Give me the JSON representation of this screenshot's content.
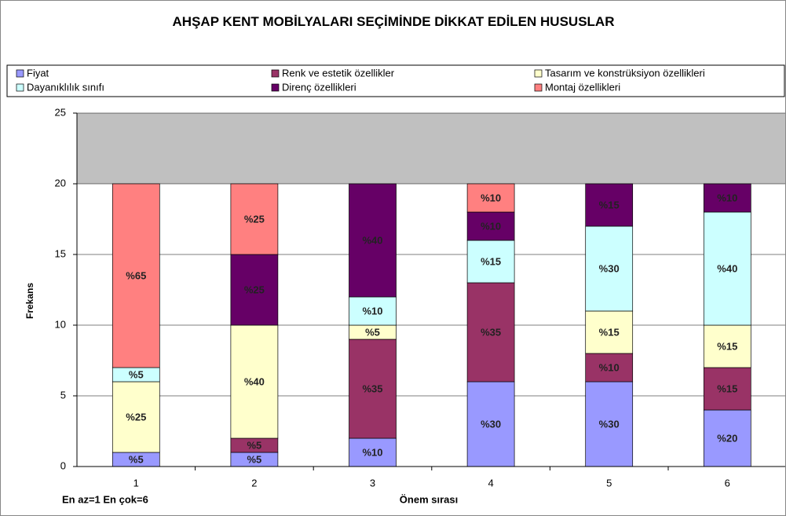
{
  "chart_data": {
    "type": "stacked_bar",
    "title": "AHŞAP KENT MOBİLYALARI SEÇİMİNDE DİKKAT EDİLEN HUSUSLAR",
    "x_label": "Önem sırası",
    "y_label": "Frekans",
    "annotation": "En az=1 En çok=6",
    "categories": [
      "1",
      "2",
      "3",
      "4",
      "5",
      "6"
    ],
    "series": [
      {
        "name": "Fiyat",
        "color": "#9999ff",
        "values": [
          1,
          1,
          2,
          6,
          6,
          4
        ],
        "value_labels": [
          "%5",
          "%5",
          "%10",
          "%30",
          "%30",
          "%20"
        ]
      },
      {
        "name": "Renk ve estetik özellikler",
        "color": "#993366",
        "values": [
          0,
          1,
          7,
          7,
          2,
          3
        ],
        "value_labels": [
          null,
          "%5",
          "%35",
          "%35",
          "%10",
          "%15"
        ]
      },
      {
        "name": "Tasarım ve konstrüksiyon özellikleri",
        "color": "#ffffcc",
        "values": [
          5,
          8,
          1,
          0,
          3,
          3
        ],
        "value_labels": [
          "%25",
          "%40",
          "%5",
          null,
          "%15",
          "%15"
        ]
      },
      {
        "name": "Dayanıklılık sınıfı",
        "color": "#ccffff",
        "values": [
          1,
          0,
          2,
          3,
          6,
          8
        ],
        "value_labels": [
          "%5",
          null,
          "%10",
          "%15",
          "%30",
          "%40"
        ]
      },
      {
        "name": "Direnç özellikleri",
        "color": "#660066",
        "values": [
          0,
          5,
          8,
          2,
          3,
          2
        ],
        "value_labels": [
          null,
          "%25",
          "%40",
          "%10",
          "%15",
          "%10"
        ]
      },
      {
        "name": "Montaj özellikleri",
        "color": "#ff8080",
        "values": [
          13,
          5,
          0,
          2,
          0,
          0
        ],
        "value_labels": [
          "%65",
          "%25",
          null,
          "%10",
          null,
          null
        ]
      }
    ],
    "ylim": [
      0,
      25
    ],
    "yticks": [
      0,
      5,
      10,
      15,
      20,
      25
    ],
    "grid": true,
    "legend": "top"
  }
}
